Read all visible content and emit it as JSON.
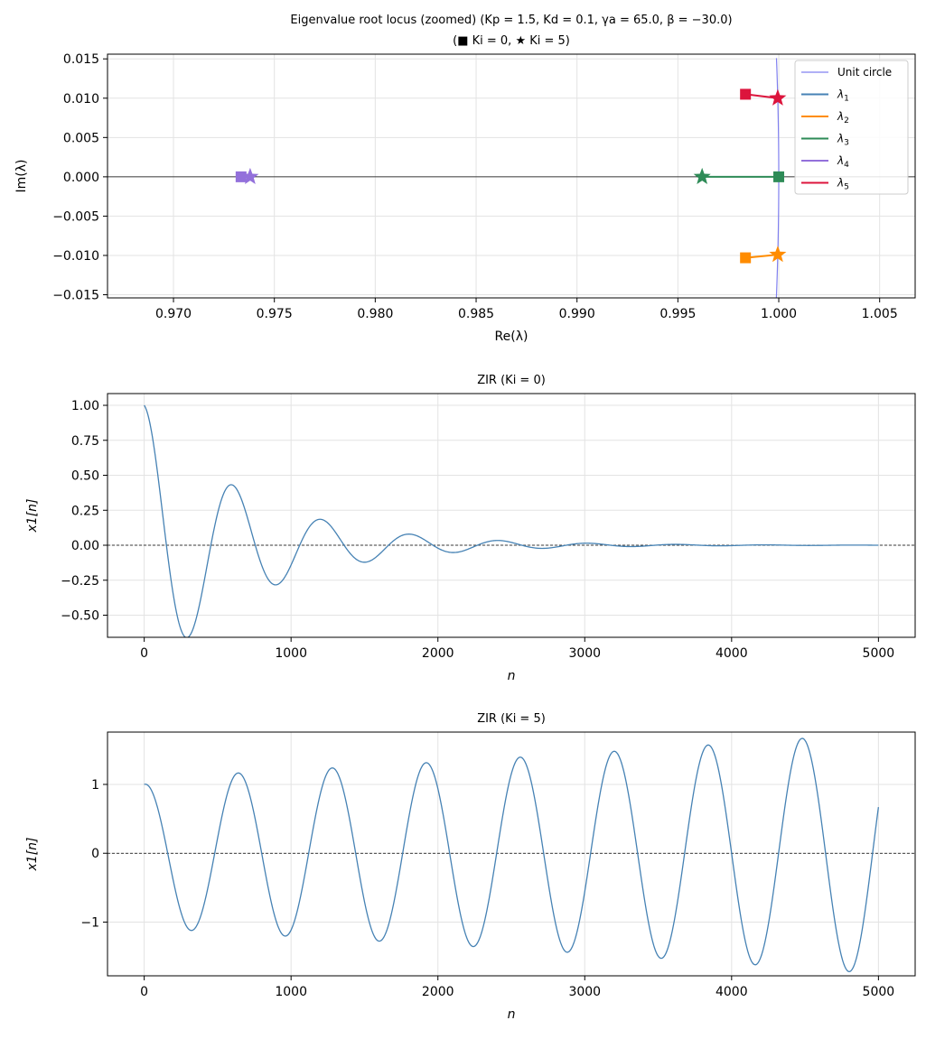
{
  "chart_data": [
    {
      "type": "scatter",
      "title": "Eigenvalue root locus (zoomed)  (Kp = 1.5, Kd = 0.1, γa = 65.0, β = −30.0)",
      "subtitle": "(■ Ki = 0,  ★ Ki = 5)",
      "xlabel": "Re(λ)",
      "ylabel": "Im(λ)",
      "xlim": [
        0.96673,
        1.00676
      ],
      "ylim": [
        -0.0154,
        0.0156
      ],
      "xticks": [
        "0.970",
        "0.975",
        "0.980",
        "0.985",
        "0.990",
        "0.995",
        "1.000",
        "1.005"
      ],
      "xtick_values": [
        0.97,
        0.975,
        0.98,
        0.985,
        0.99,
        0.995,
        1.0,
        1.005
      ],
      "yticks": [
        "0.015",
        "0.010",
        "0.005",
        "0.000",
        "−0.005",
        "−0.010",
        "−0.015"
      ],
      "ytick_values": [
        0.015,
        0.01,
        0.005,
        0.0,
        -0.005,
        -0.01,
        -0.015
      ],
      "grid": true,
      "legend_position": "top-right",
      "unit_circle": {
        "name": "Unit circle",
        "color": "#8080f0"
      },
      "series": [
        {
          "name": "λ1",
          "sub": "1",
          "color": "#4682b4",
          "start": [
            null,
            null
          ],
          "end": [
            null,
            null
          ]
        },
        {
          "name": "λ2",
          "sub": "2",
          "color": "#ff8c00",
          "start": [
            0.99835,
            -0.0103
          ],
          "end": [
            0.99995,
            -0.0099
          ]
        },
        {
          "name": "λ3",
          "sub": "3",
          "color": "#2e8b57",
          "start": [
            1.0,
            0.0
          ],
          "end": [
            0.9962,
            0.0
          ]
        },
        {
          "name": "λ4",
          "sub": "4",
          "color": "#9370db",
          "start": [
            0.97335,
            0.0
          ],
          "end": [
            0.9738,
            0.0
          ]
        },
        {
          "name": "λ5",
          "sub": "5",
          "color": "#dc143c",
          "start": [
            0.99835,
            0.0105
          ],
          "end": [
            0.99995,
            0.01
          ]
        }
      ]
    },
    {
      "type": "line",
      "title": "ZIR  (Ki = 0)",
      "xlabel": "n",
      "ylabel": "x1[n]",
      "xlim": [
        -250,
        5250
      ],
      "ylim": [
        -0.658,
        1.084
      ],
      "xticks": [
        "0",
        "1000",
        "2000",
        "3000",
        "4000",
        "5000"
      ],
      "xtick_values": [
        0,
        1000,
        2000,
        3000,
        4000,
        5000
      ],
      "yticks": [
        "1.00",
        "0.75",
        "0.50",
        "0.25",
        "0.00",
        "−0.25",
        "−0.50"
      ],
      "ytick_values": [
        1.0,
        0.75,
        0.5,
        0.25,
        0.0,
        -0.25,
        -0.5
      ],
      "grid": true,
      "color": "#4682b4",
      "model": {
        "n_max": 5000,
        "rate": -0.0014,
        "period": 605,
        "amp": 1.0
      }
    },
    {
      "type": "line",
      "title": "ZIR  (Ki = 5)",
      "xlabel": "n",
      "ylabel": "x1[n]",
      "xlim": [
        -250,
        5250
      ],
      "ylim": [
        -1.78,
        1.76
      ],
      "xticks": [
        "0",
        "1000",
        "2000",
        "3000",
        "4000",
        "5000"
      ],
      "xtick_values": [
        0,
        1000,
        2000,
        3000,
        4000,
        5000
      ],
      "yticks": [
        "1",
        "0",
        "−1"
      ],
      "ytick_values": [
        1,
        0,
        -1
      ],
      "grid": true,
      "color": "#4682b4",
      "model": {
        "n_max": 5000,
        "rate": 9.3e-05,
        "period": 640,
        "amp": 1.1
      }
    }
  ]
}
